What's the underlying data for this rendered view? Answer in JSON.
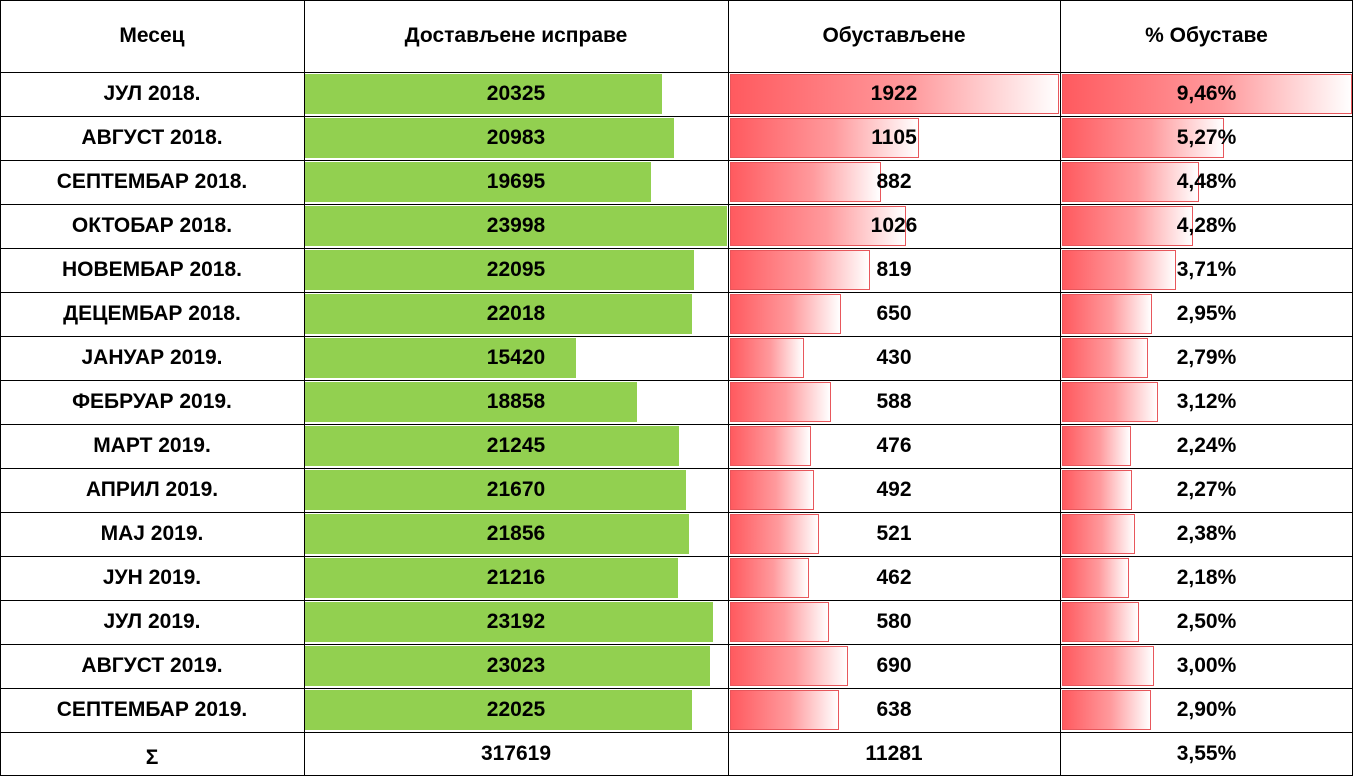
{
  "table": {
    "headers": {
      "month": "Месец",
      "delivered": "Достављене исправе",
      "suspended": "Обустављене",
      "percent": "% Обуставе"
    },
    "rows": [
      {
        "month": "ЈУЛ 2018.",
        "delivered": "20325",
        "suspended": "1922",
        "percent": "9,46%"
      },
      {
        "month": "АВГУСТ 2018.",
        "delivered": "20983",
        "suspended": "1105",
        "percent": "5,27%"
      },
      {
        "month": "СЕПТЕМБАР 2018.",
        "delivered": "19695",
        "suspended": "882",
        "percent": "4,48%"
      },
      {
        "month": "ОКТОБАР 2018.",
        "delivered": "23998",
        "suspended": "1026",
        "percent": "4,28%"
      },
      {
        "month": "НОВЕМБАР 2018.",
        "delivered": "22095",
        "suspended": "819",
        "percent": "3,71%"
      },
      {
        "month": "ДЕЦЕМБАР 2018.",
        "delivered": "22018",
        "suspended": "650",
        "percent": "2,95%"
      },
      {
        "month": "ЈАНУАР 2019.",
        "delivered": "15420",
        "suspended": "430",
        "percent": "2,79%"
      },
      {
        "month": "ФЕБРУАР 2019.",
        "delivered": "18858",
        "suspended": "588",
        "percent": "3,12%"
      },
      {
        "month": "МАРТ 2019.",
        "delivered": "21245",
        "suspended": "476",
        "percent": "2,24%"
      },
      {
        "month": "АПРИЛ 2019.",
        "delivered": "21670",
        "suspended": "492",
        "percent": "2,27%"
      },
      {
        "month": "МАЈ 2019.",
        "delivered": "21856",
        "suspended": "521",
        "percent": "2,38%"
      },
      {
        "month": "ЈУН 2019.",
        "delivered": "21216",
        "suspended": "462",
        "percent": "2,18%"
      },
      {
        "month": "ЈУЛ 2019.",
        "delivered": "23192",
        "suspended": "580",
        "percent": "2,50%"
      },
      {
        "month": "АВГУСТ 2019.",
        "delivered": "23023",
        "suspended": "690",
        "percent": "3,00%"
      },
      {
        "month": "СЕПТЕМБАР 2019.",
        "delivered": "22025",
        "suspended": "638",
        "percent": "2,90%"
      }
    ],
    "total": {
      "label": "Σ",
      "delivered": "317619",
      "suspended": "11281",
      "percent": "3,55%"
    }
  },
  "colors": {
    "delivered_bar": "#92d050",
    "suspended_bar_start": "#ff5a5f",
    "suspended_bar_end": "#ffffff",
    "grid": "#000000"
  },
  "chart_data": {
    "type": "table",
    "columns": [
      "Месец",
      "Достављене исправе",
      "Обустављене",
      "% Обуставе"
    ],
    "categories": [
      "ЈУЛ 2018.",
      "АВГУСТ 2018.",
      "СЕПТЕМБАР 2018.",
      "ОКТОБАР 2018.",
      "НОВЕМБАР 2018.",
      "ДЕЦЕМБАР 2018.",
      "ЈАНУАР 2019.",
      "ФЕБРУАР 2019.",
      "МАРТ 2019.",
      "АПРИЛ 2019.",
      "МАЈ 2019.",
      "ЈУН 2019.",
      "ЈУЛ 2019.",
      "АВГУСТ 2019.",
      "СЕПТЕМБАР 2019."
    ],
    "series": [
      {
        "name": "Достављене исправе",
        "values": [
          20325,
          20983,
          19695,
          23998,
          22095,
          22018,
          15420,
          18858,
          21245,
          21670,
          21856,
          21216,
          23192,
          23023,
          22025
        ]
      },
      {
        "name": "Обустављене",
        "values": [
          1922,
          1105,
          882,
          1026,
          819,
          650,
          430,
          588,
          476,
          492,
          521,
          462,
          580,
          690,
          638
        ]
      },
      {
        "name": "% Обуставе",
        "values": [
          9.46,
          5.27,
          4.48,
          4.28,
          3.71,
          2.95,
          2.79,
          3.12,
          2.24,
          2.27,
          2.38,
          2.18,
          2.5,
          3.0,
          2.9
        ]
      }
    ],
    "totals": {
      "Достављене исправе": 317619,
      "Обустављене": 11281,
      "% Обуставе": 3.55
    }
  }
}
